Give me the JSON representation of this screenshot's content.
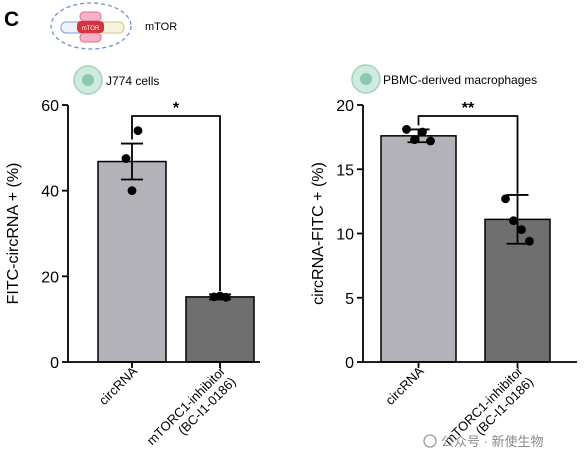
{
  "panel_label": "C",
  "icon_label": "mTOR",
  "icon_inner_text": "mTOR",
  "watermark": "公众号 · 新使生物",
  "colors": {
    "bar_light": "#b3b2b8",
    "bar_dark": "#6f6f6f",
    "cell": "#9fd3bf",
    "dash": "#6e8fd6",
    "pink": "#e86a8e",
    "red": "#d8323c"
  },
  "chart_data": [
    {
      "type": "bar",
      "cell_label": "J774 cells",
      "ylabel": "FITC-circRNA + (%)",
      "ylim": [
        0,
        60
      ],
      "yticks": [
        0,
        20,
        40,
        60
      ],
      "categories": [
        "circRNA",
        "mTORC1-inhibitor\n(BC-I1-0186)"
      ],
      "values": [
        46.8,
        15.2
      ],
      "errors": [
        4.2,
        0.6
      ],
      "points": [
        [
          47.5,
          40,
          54
        ],
        [
          15.2,
          15.4,
          15.1
        ]
      ],
      "significance": "*"
    },
    {
      "type": "bar",
      "cell_label": "PBMC-derived macrophages",
      "ylabel": "circRNA-FITC + (%)",
      "ylim": [
        0,
        20
      ],
      "yticks": [
        0,
        5,
        10,
        15,
        20
      ],
      "categories": [
        "circRNA",
        "mTORC1-inhibitor\n(BC-I1-0186)"
      ],
      "values": [
        17.6,
        11.1
      ],
      "errors": [
        0.5,
        1.9
      ],
      "points": [
        [
          18.1,
          17.3,
          17.9,
          17.2
        ],
        [
          12.7,
          11.0,
          10.3,
          9.4
        ]
      ],
      "significance": "**"
    }
  ]
}
